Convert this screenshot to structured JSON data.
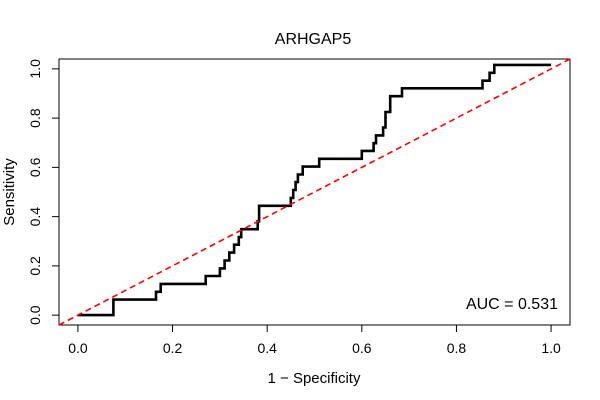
{
  "chart_data": {
    "type": "line",
    "title": "ARHGAP5",
    "xlabel": "1 − Specificity",
    "ylabel": "Sensitivity",
    "xlim": [
      -0.04,
      1.04
    ],
    "ylim": [
      -0.04,
      1.04
    ],
    "x_ticks": [
      0.0,
      0.2,
      0.4,
      0.6,
      0.8,
      1.0
    ],
    "x_tick_labels": [
      "0.0",
      "0.2",
      "0.4",
      "0.6",
      "0.8",
      "1.0"
    ],
    "y_ticks": [
      0.0,
      0.2,
      0.4,
      0.6,
      0.8,
      1.0
    ],
    "y_tick_labels": [
      "0.0",
      "0.2",
      "0.4",
      "0.6",
      "0.8",
      "1.0"
    ],
    "grid": false,
    "annotation": "AUC = 0.531",
    "colors": {
      "roc": "#000000",
      "reference": "#ff0000"
    },
    "series": [
      {
        "kind": "roc",
        "style": "step",
        "points": [
          [
            0.0,
            0.0
          ],
          [
            0.075,
            0.0
          ],
          [
            0.075,
            0.063
          ],
          [
            0.165,
            0.063
          ],
          [
            0.165,
            0.095
          ],
          [
            0.175,
            0.095
          ],
          [
            0.175,
            0.127
          ],
          [
            0.27,
            0.127
          ],
          [
            0.27,
            0.159
          ],
          [
            0.3,
            0.159
          ],
          [
            0.3,
            0.19
          ],
          [
            0.31,
            0.19
          ],
          [
            0.31,
            0.222
          ],
          [
            0.32,
            0.222
          ],
          [
            0.32,
            0.254
          ],
          [
            0.33,
            0.254
          ],
          [
            0.33,
            0.286
          ],
          [
            0.34,
            0.286
          ],
          [
            0.34,
            0.317
          ],
          [
            0.345,
            0.317
          ],
          [
            0.345,
            0.349
          ],
          [
            0.38,
            0.349
          ],
          [
            0.38,
            0.381
          ],
          [
            0.383,
            0.381
          ],
          [
            0.383,
            0.444
          ],
          [
            0.45,
            0.444
          ],
          [
            0.45,
            0.476
          ],
          [
            0.455,
            0.476
          ],
          [
            0.455,
            0.508
          ],
          [
            0.46,
            0.508
          ],
          [
            0.46,
            0.54
          ],
          [
            0.465,
            0.54
          ],
          [
            0.465,
            0.571
          ],
          [
            0.475,
            0.571
          ],
          [
            0.475,
            0.603
          ],
          [
            0.51,
            0.603
          ],
          [
            0.51,
            0.635
          ],
          [
            0.6,
            0.635
          ],
          [
            0.6,
            0.667
          ],
          [
            0.625,
            0.667
          ],
          [
            0.625,
            0.698
          ],
          [
            0.63,
            0.698
          ],
          [
            0.63,
            0.73
          ],
          [
            0.645,
            0.73
          ],
          [
            0.645,
            0.762
          ],
          [
            0.65,
            0.762
          ],
          [
            0.65,
            0.825
          ],
          [
            0.66,
            0.825
          ],
          [
            0.66,
            0.889
          ],
          [
            0.685,
            0.889
          ],
          [
            0.685,
            0.921
          ],
          [
            0.855,
            0.921
          ],
          [
            0.855,
            0.952
          ],
          [
            0.87,
            0.952
          ],
          [
            0.87,
            0.984
          ],
          [
            0.88,
            0.984
          ],
          [
            0.88,
            1.016
          ],
          [
            1.0,
            1.016
          ]
        ]
      },
      {
        "kind": "reference",
        "style": "dashed",
        "points": [
          [
            -0.04,
            -0.04
          ],
          [
            1.04,
            1.04
          ]
        ]
      }
    ]
  }
}
